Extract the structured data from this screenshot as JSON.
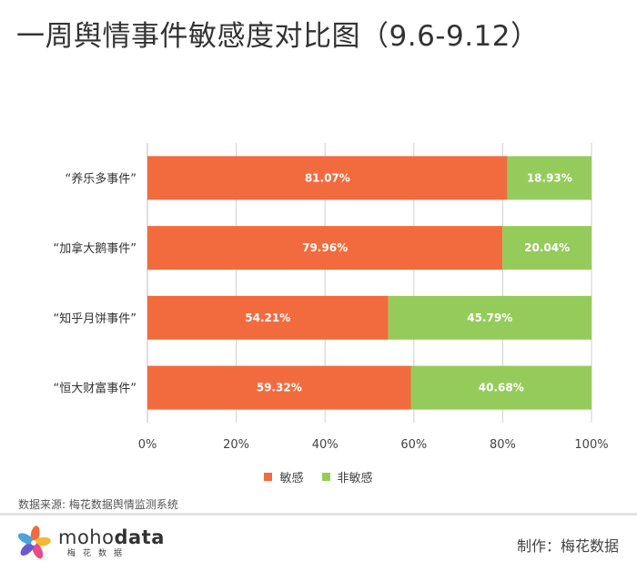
{
  "page": {
    "title": "一周舆情事件敏感度对比图（9.6-9.12）",
    "source": "数据来源: 梅花数据舆情监测系统",
    "maker": "制作：梅花数据",
    "logo": {
      "word_light": "moho",
      "word_bold": "data",
      "subtitle": "梅花数据"
    }
  },
  "colors": {
    "sensitive": "#f26b3f",
    "non_sensitive": "#95cb5b",
    "axis": "#cfcfcf"
  },
  "chart_data": {
    "type": "bar",
    "orientation": "horizontal",
    "stacked": "percent",
    "categories": [
      "“养乐多事件”",
      "“加拿大鹅事件”",
      "“知乎月饼事件”",
      "“恒大财富事件”"
    ],
    "series": [
      {
        "name": "敏感",
        "values": [
          81.07,
          79.96,
          54.21,
          59.32
        ],
        "labels": [
          "81.07%",
          "79.96%",
          "54.21%",
          "59.32%"
        ]
      },
      {
        "name": "非敏感",
        "values": [
          18.93,
          20.04,
          45.79,
          40.68
        ],
        "labels": [
          "18.93%",
          "20.04%",
          "45.79%",
          "40.68%"
        ]
      }
    ],
    "xlim": [
      0,
      100
    ],
    "xticks": [
      "0%",
      "20%",
      "40%",
      "60%",
      "80%",
      "100%"
    ],
    "grid": "vertical",
    "legend": "bottom-center"
  }
}
